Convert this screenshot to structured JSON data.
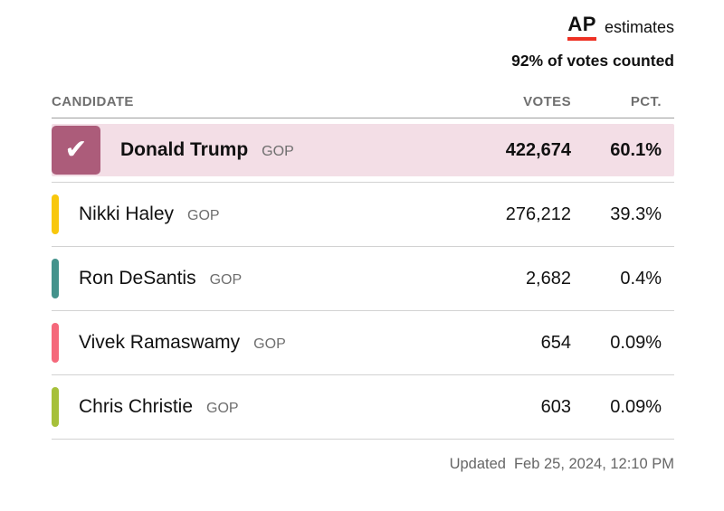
{
  "header": {
    "ap_logo": "AP",
    "estimates_label": "estimates",
    "votes_counted": "92% of votes counted"
  },
  "table": {
    "columns": [
      "CANDIDATE",
      "VOTES",
      "PCT."
    ],
    "rows": [
      {
        "name": "Donald Trump",
        "party": "GOP",
        "votes": "422,674",
        "pct": "60.1%",
        "color": "#ac5c7a",
        "winner": true
      },
      {
        "name": "Nikki Haley",
        "party": "GOP",
        "votes": "276,212",
        "pct": "39.3%",
        "color": "#f8c70c",
        "winner": false
      },
      {
        "name": "Ron DeSantis",
        "party": "GOP",
        "votes": "2,682",
        "pct": "0.4%",
        "color": "#44938c",
        "winner": false
      },
      {
        "name": "Vivek Ramaswamy",
        "party": "GOP",
        "votes": "654",
        "pct": "0.09%",
        "color": "#f5687b",
        "winner": false
      },
      {
        "name": "Chris Christie",
        "party": "GOP",
        "votes": "603",
        "pct": "0.09%",
        "color": "#a6c03a",
        "winner": false
      }
    ]
  },
  "footer": {
    "updated_label": "Updated",
    "updated_date": "Feb 25, 2024, 12:10 PM"
  },
  "icons": {
    "check": "✔"
  },
  "colors": {
    "ap_red": "#ee3124",
    "winner_row_bg": "#f3dee6"
  },
  "chart_data": {
    "type": "table",
    "title": "AP estimates",
    "subtitle": "92% of votes counted",
    "columns": [
      "CANDIDATE",
      "VOTES",
      "PCT."
    ],
    "rows": [
      {
        "candidate": "Donald Trump",
        "party": "GOP",
        "votes": 422674,
        "pct": 60.1,
        "winner": true
      },
      {
        "candidate": "Nikki Haley",
        "party": "GOP",
        "votes": 276212,
        "pct": 39.3,
        "winner": false
      },
      {
        "candidate": "Ron DeSantis",
        "party": "GOP",
        "votes": 2682,
        "pct": 0.4,
        "winner": false
      },
      {
        "candidate": "Vivek Ramaswamy",
        "party": "GOP",
        "votes": 654,
        "pct": 0.09,
        "winner": false
      },
      {
        "candidate": "Chris Christie",
        "party": "GOP",
        "votes": 603,
        "pct": 0.09,
        "winner": false
      }
    ],
    "updated": "Feb 25, 2024, 12:10 PM"
  }
}
